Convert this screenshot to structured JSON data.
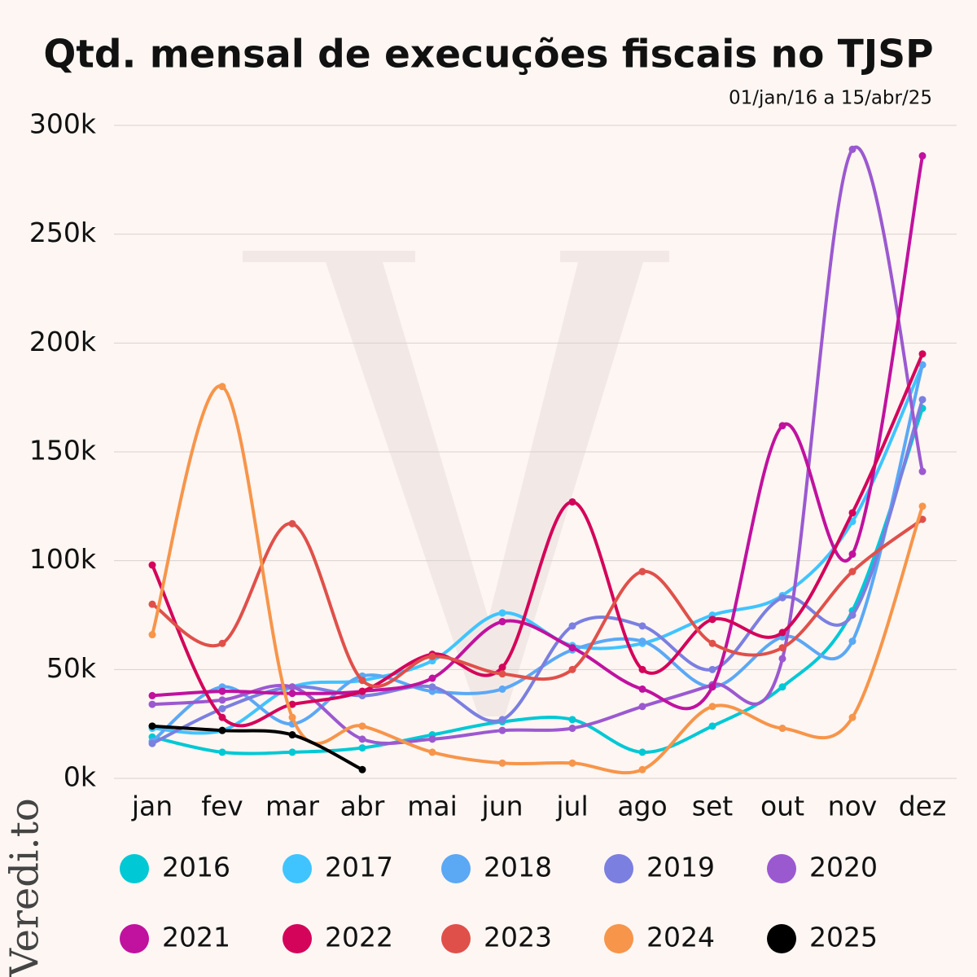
{
  "brand": "Veredi.to",
  "chart_data": {
    "type": "line",
    "title": "Qtd. mensal de execuções fiscais no TJSP",
    "subtitle": "01/jan/16 a 15/abr/25",
    "categories": [
      "jan",
      "fev",
      "mar",
      "abr",
      "mai",
      "jun",
      "jul",
      "ago",
      "set",
      "out",
      "nov",
      "dez"
    ],
    "ylim": [
      0,
      300000
    ],
    "yticks": [
      {
        "value": 0,
        "label": "0k"
      },
      {
        "value": 50000,
        "label": "50k"
      },
      {
        "value": 100000,
        "label": "100k"
      },
      {
        "value": 150000,
        "label": "150k"
      },
      {
        "value": 200000,
        "label": "200k"
      },
      {
        "value": 250000,
        "label": "250k"
      },
      {
        "value": 300000,
        "label": "300k"
      }
    ],
    "grid": true,
    "legend": "bottom",
    "series": [
      {
        "name": "2016",
        "color": "#00c8d4",
        "values": [
          19000,
          12000,
          12000,
          14000,
          20000,
          26000,
          27000,
          12000,
          24000,
          42000,
          77000,
          170000
        ]
      },
      {
        "name": "2017",
        "color": "#40c4ff",
        "values": [
          23000,
          22000,
          42000,
          45000,
          54000,
          76000,
          61000,
          62000,
          75000,
          84000,
          118000,
          190000
        ]
      },
      {
        "name": "2018",
        "color": "#5ba8f5",
        "values": [
          17000,
          42000,
          25000,
          47000,
          40000,
          41000,
          59000,
          63000,
          42000,
          65000,
          63000,
          190000
        ]
      },
      {
        "name": "2019",
        "color": "#7b7fe0",
        "values": [
          16000,
          32000,
          42000,
          38000,
          42000,
          27000,
          70000,
          70000,
          50000,
          83000,
          75000,
          174000
        ]
      },
      {
        "name": "2020",
        "color": "#9b59d0",
        "values": [
          34000,
          36000,
          42000,
          18000,
          18000,
          22000,
          23000,
          33000,
          43000,
          55000,
          289000,
          141000
        ]
      },
      {
        "name": "2021",
        "color": "#c0129e",
        "values": [
          38000,
          40000,
          39000,
          40000,
          46000,
          72000,
          60000,
          41000,
          42000,
          162000,
          103000,
          286000
        ]
      },
      {
        "name": "2022",
        "color": "#d4045a",
        "values": [
          98000,
          28000,
          34000,
          40000,
          57000,
          51000,
          127000,
          50000,
          73000,
          67000,
          122000,
          195000
        ]
      },
      {
        "name": "2023",
        "color": "#e0504a",
        "values": [
          80000,
          62000,
          117000,
          45000,
          56000,
          48000,
          50000,
          95000,
          62000,
          60000,
          95000,
          119000
        ]
      },
      {
        "name": "2024",
        "color": "#f7954a",
        "values": [
          66000,
          180000,
          28000,
          24000,
          12000,
          7000,
          7000,
          4000,
          33000,
          23000,
          28000,
          125000
        ]
      },
      {
        "name": "2025",
        "color": "#000000",
        "values": [
          24000,
          22000,
          20000,
          4000,
          null,
          null,
          null,
          null,
          null,
          null,
          null,
          null
        ]
      }
    ]
  }
}
